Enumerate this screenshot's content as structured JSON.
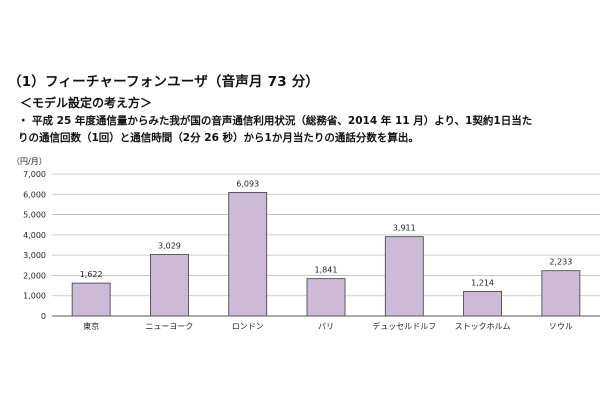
{
  "header": {
    "title": "（1）フィーチャーフォンユーザ（音声月 73 分）",
    "subtitle": "＜モデル設定の考え方＞",
    "bullet": "・",
    "note_line1": "平成 25 年度通信量からみた我が国の音声通信利用状況（総務省、2014 年 11 月）より、1契約1日当た",
    "note_line2": "りの通信回数（1回）と通信時間（2分 26 秒）から1か月当たりの通話分数を算出。"
  },
  "chart_data": {
    "type": "bar",
    "unit_label": "（円/月）",
    "categories": [
      "東京",
      "ニューヨーク",
      "ロンドン",
      "パリ",
      "デュッセルドルフ",
      "ストックホルム",
      "ソウル"
    ],
    "values": [
      1622,
      3029,
      6093,
      1841,
      3911,
      1214,
      2233
    ],
    "value_labels": [
      "1,622",
      "3,029",
      "6,093",
      "1,841",
      "3,911",
      "1,214",
      "2,233"
    ],
    "ylim": [
      0,
      7000
    ],
    "yticks": [
      0,
      1000,
      2000,
      3000,
      4000,
      5000,
      6000,
      7000
    ],
    "ytick_labels": [
      "0",
      "1,000",
      "2,000",
      "3,000",
      "4,000",
      "5,000",
      "6,000",
      "7,000"
    ],
    "grid": true,
    "colors": {
      "bar_fill": "#cdb9d8",
      "bar_stroke": "#3c3c3c",
      "grid": "#bdbdbd",
      "axis": "#555555",
      "text": "#222222"
    }
  }
}
